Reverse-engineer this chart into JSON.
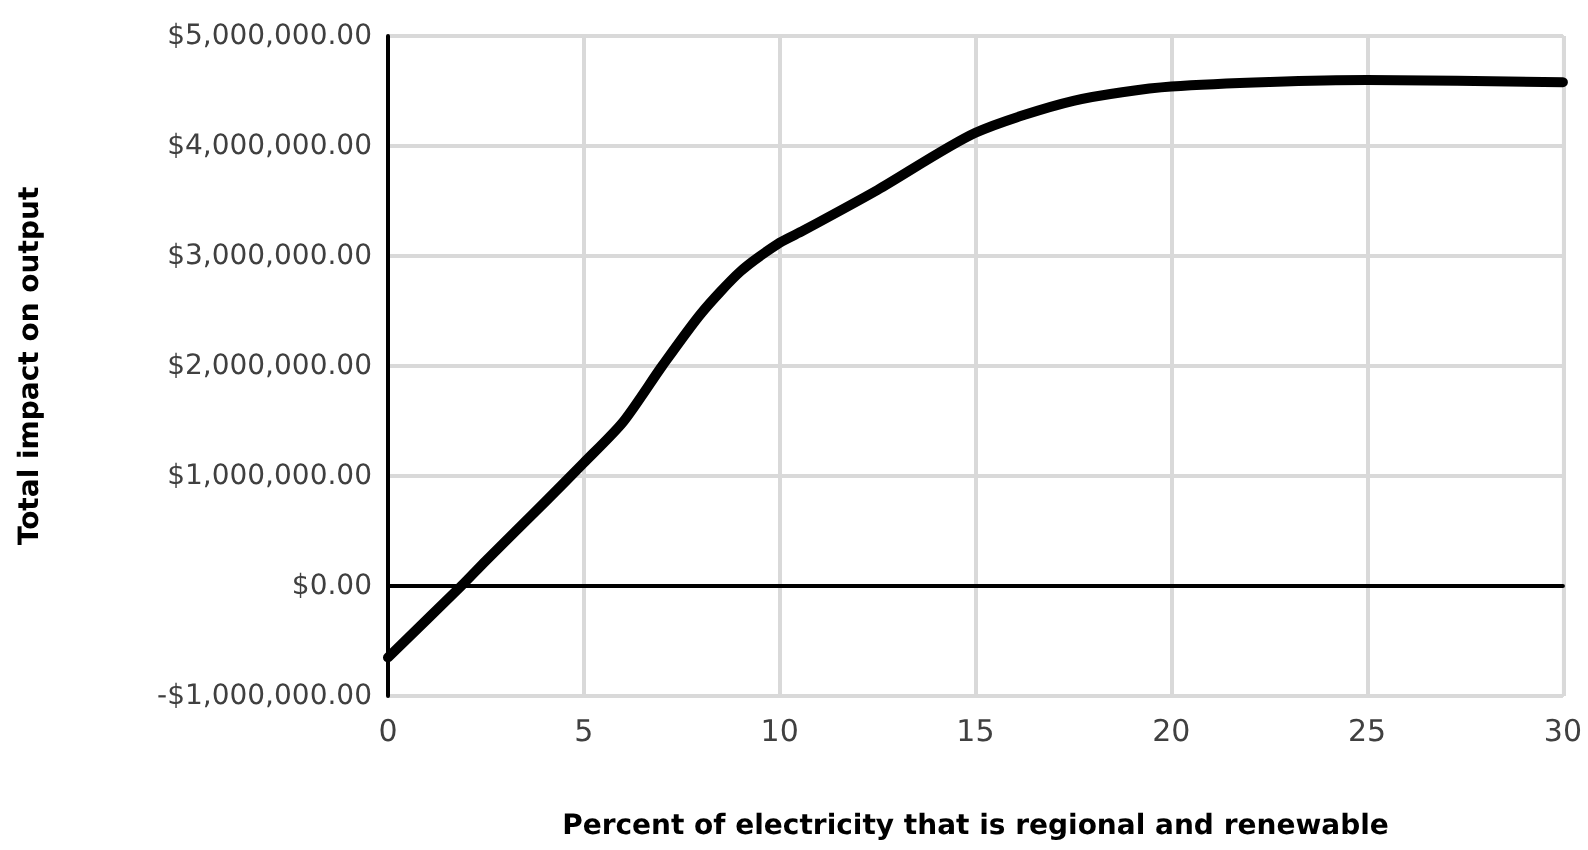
{
  "chart_data": {
    "type": "line",
    "xlabel": "Percent of electricity that is regional and renewable",
    "ylabel": "Total impact on output",
    "x": [
      0,
      1.87,
      2.5,
      4,
      5,
      6,
      7,
      8,
      9,
      10,
      10.6,
      12.5,
      15,
      17.5,
      20,
      25,
      30
    ],
    "series": [
      {
        "color": "#000000",
        "values": [
          -650000,
          0,
          230000,
          760000,
          1120000,
          1490000,
          2000000,
          2480000,
          2860000,
          3120000,
          3230000,
          3600000,
          4120000,
          4410000,
          4540000,
          4600000,
          4580000
        ]
      }
    ],
    "xlim": [
      0,
      30
    ],
    "xticks": [
      0,
      5,
      10,
      15,
      20,
      25,
      30
    ],
    "ylim": [
      -1000000,
      5000000
    ],
    "yticks": [
      {
        "value": -1000000,
        "label": "-$1,000,000.00"
      },
      {
        "value": 0,
        "label": "$0.00"
      },
      {
        "value": 1000000,
        "label": "$1,000,000.00"
      },
      {
        "value": 2000000,
        "label": "$2,000,000.00"
      },
      {
        "value": 3000000,
        "label": "$3,000,000.00"
      },
      {
        "value": 4000000,
        "label": "$4,000,000.00"
      },
      {
        "value": 5000000,
        "label": "$5,000,000.00"
      }
    ],
    "grid": true,
    "marker": "none",
    "line_style": "solid"
  }
}
